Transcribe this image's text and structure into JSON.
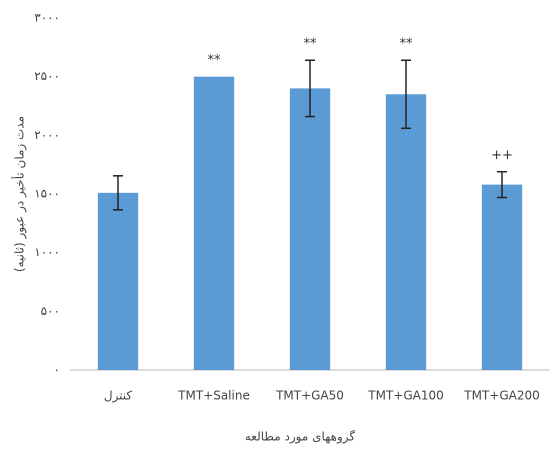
{
  "chart_data": {
    "type": "bar",
    "categories": [
      "کنترل",
      "TMT+Saline",
      "TMT+GA50",
      "TMT+GA100",
      "TMT+GA200"
    ],
    "values": [
      1510,
      2500,
      2400,
      2350,
      1580
    ],
    "errors": [
      145,
      null,
      240,
      290,
      110
    ],
    "annotations": [
      null,
      "**",
      "**",
      "**",
      "++"
    ],
    "color": "#5b9bd5",
    "ylim": [
      0,
      3000
    ],
    "yticks": [
      {
        "value": 0,
        "label": "۰"
      },
      {
        "value": 500,
        "label": "۵۰۰"
      },
      {
        "value": 1000,
        "label": "۱۰۰۰"
      },
      {
        "value": 1500,
        "label": "۱۵۰۰"
      },
      {
        "value": 2000,
        "label": "۲۰۰۰"
      },
      {
        "value": 2500,
        "label": "۲۵۰۰"
      },
      {
        "value": 3000,
        "label": "۳۰۰۰"
      }
    ],
    "ylabel": "مدت زمان تأخیر در عبور (ثانیه)",
    "xlabel": "گروههای مورد مطالعه",
    "grid": false
  }
}
